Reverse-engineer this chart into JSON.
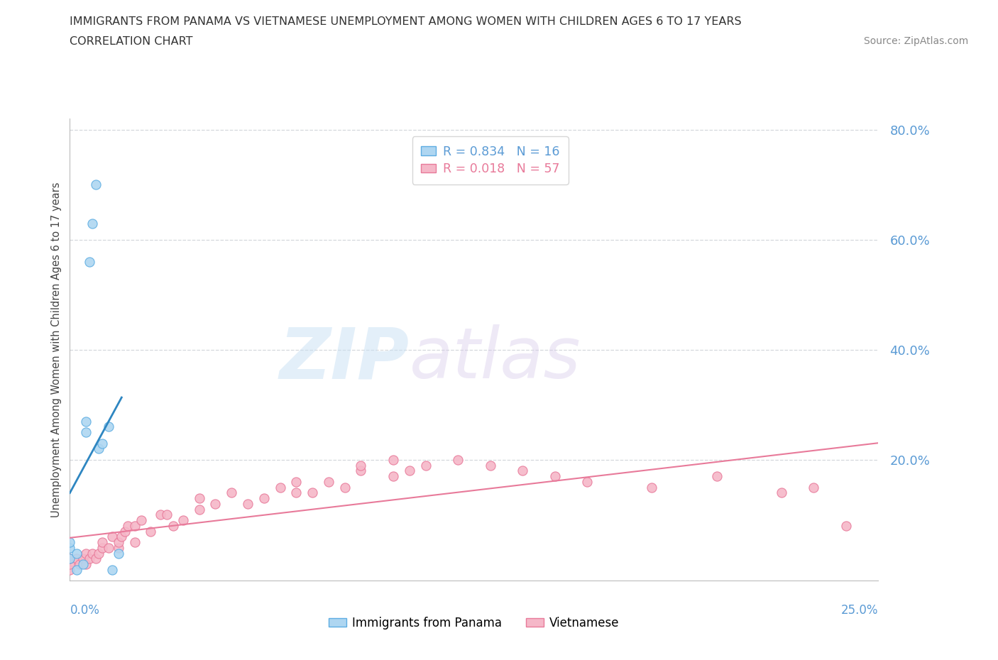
{
  "title_line1": "IMMIGRANTS FROM PANAMA VS VIETNAMESE UNEMPLOYMENT AMONG WOMEN WITH CHILDREN AGES 6 TO 17 YEARS",
  "title_line2": "CORRELATION CHART",
  "source_text": "Source: ZipAtlas.com",
  "ylabel_left": "Unemployment Among Women with Children Ages 6 to 17 years",
  "xaxis_label_left": "0.0%",
  "xaxis_label_right": "25.0%",
  "xlim": [
    0.0,
    0.25
  ],
  "ylim": [
    -0.02,
    0.82
  ],
  "right_ytick_labels": [
    "20.0%",
    "40.0%",
    "60.0%",
    "80.0%"
  ],
  "right_yticks": [
    0.2,
    0.4,
    0.6,
    0.8
  ],
  "panama_color": "#aed6f1",
  "vietnamese_color": "#f5b7c8",
  "panama_edge_color": "#5dade2",
  "vietnamese_edge_color": "#e87a9a",
  "panama_line_color": "#2e86c1",
  "vietnamese_line_color": "#e87a9a",
  "grid_color": "#d5d8dc",
  "background_color": "#ffffff",
  "watermark_zip": "ZIP",
  "watermark_atlas": "atlas",
  "legend_r_label1": "R = 0.834   N = 16",
  "legend_r_label2": "R = 0.018   N = 57",
  "panama_n": 16,
  "vietnamese_n": 57,
  "panama_x": [
    0.0,
    0.0,
    0.0,
    0.002,
    0.002,
    0.004,
    0.005,
    0.005,
    0.006,
    0.007,
    0.008,
    0.009,
    0.01,
    0.012,
    0.013,
    0.015
  ],
  "panama_y": [
    0.02,
    0.04,
    0.05,
    0.0,
    0.03,
    0.01,
    0.25,
    0.27,
    0.56,
    0.63,
    0.7,
    0.22,
    0.23,
    0.26,
    0.0,
    0.03
  ],
  "vietnamese_x": [
    0.0,
    0.0,
    0.0,
    0.002,
    0.003,
    0.004,
    0.005,
    0.005,
    0.006,
    0.007,
    0.008,
    0.009,
    0.01,
    0.01,
    0.012,
    0.013,
    0.015,
    0.015,
    0.016,
    0.017,
    0.018,
    0.02,
    0.02,
    0.022,
    0.025,
    0.028,
    0.03,
    0.032,
    0.035,
    0.04,
    0.04,
    0.045,
    0.05,
    0.055,
    0.06,
    0.065,
    0.07,
    0.07,
    0.075,
    0.08,
    0.085,
    0.09,
    0.09,
    0.1,
    0.1,
    0.105,
    0.11,
    0.12,
    0.13,
    0.14,
    0.15,
    0.16,
    0.18,
    0.2,
    0.22,
    0.23,
    0.24
  ],
  "vietnamese_y": [
    0.0,
    0.01,
    0.02,
    0.02,
    0.01,
    0.02,
    0.01,
    0.03,
    0.02,
    0.03,
    0.02,
    0.03,
    0.04,
    0.05,
    0.04,
    0.06,
    0.04,
    0.05,
    0.06,
    0.07,
    0.08,
    0.05,
    0.08,
    0.09,
    0.07,
    0.1,
    0.1,
    0.08,
    0.09,
    0.11,
    0.13,
    0.12,
    0.14,
    0.12,
    0.13,
    0.15,
    0.14,
    0.16,
    0.14,
    0.16,
    0.15,
    0.18,
    0.19,
    0.17,
    0.2,
    0.18,
    0.19,
    0.2,
    0.19,
    0.18,
    0.17,
    0.16,
    0.15,
    0.17,
    0.14,
    0.15,
    0.08
  ]
}
